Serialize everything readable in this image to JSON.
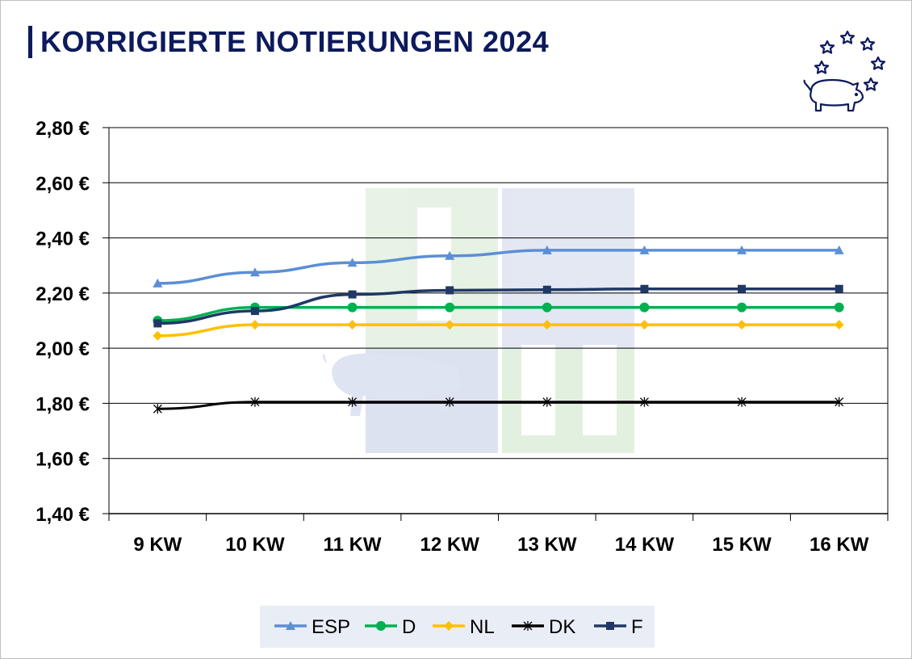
{
  "page": {
    "title": "KORRIGIERTE NOTIERUNGEN 2024"
  },
  "logo": {
    "icon": "pig-with-stars-icon",
    "color": "#0d1a5c"
  },
  "watermark": {
    "icon": "isn-logo-watermark-icon"
  },
  "chart_data": {
    "type": "line",
    "title": "KORRIGIERTE NOTIERUNGEN 2024",
    "xlabel": "",
    "ylabel": "",
    "categories": [
      "9 KW",
      "10 KW",
      "11 KW",
      "12 KW",
      "13 KW",
      "14 KW",
      "15 KW",
      "16 KW"
    ],
    "ylim": [
      1.4,
      2.8
    ],
    "yticks": [
      1.4,
      1.6,
      1.8,
      2.0,
      2.2,
      2.4,
      2.6,
      2.8
    ],
    "ytick_labels": [
      "1,40 €",
      "1,60 €",
      "1,80 €",
      "2,00 €",
      "2,20 €",
      "2,40 €",
      "2,60 €",
      "2,80 €"
    ],
    "grid": "horizontal",
    "legend_position": "bottom",
    "series": [
      {
        "name": "ESP",
        "color": "#5b8fd6",
        "marker": "triangle",
        "values": [
          2.235,
          2.275,
          2.31,
          2.335,
          2.355,
          2.355,
          2.355,
          2.355
        ]
      },
      {
        "name": "D",
        "color": "#00b050",
        "marker": "circle",
        "values": [
          2.1,
          2.148,
          2.148,
          2.148,
          2.148,
          2.148,
          2.148,
          2.148
        ]
      },
      {
        "name": "NL",
        "color": "#ffc000",
        "marker": "diamond",
        "values": [
          2.045,
          2.085,
          2.085,
          2.085,
          2.085,
          2.085,
          2.085,
          2.085
        ]
      },
      {
        "name": "DK",
        "color": "#000000",
        "marker": "star",
        "values": [
          1.78,
          1.805,
          1.805,
          1.805,
          1.805,
          1.805,
          1.805,
          1.805
        ]
      },
      {
        "name": "F",
        "color": "#1f3864",
        "marker": "square",
        "values": [
          2.09,
          2.135,
          2.195,
          2.21,
          2.212,
          2.215,
          2.215,
          2.215
        ]
      }
    ]
  }
}
